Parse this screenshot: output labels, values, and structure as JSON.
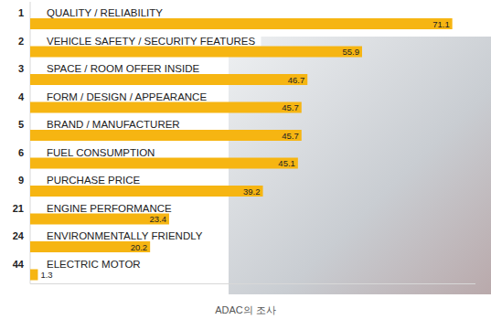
{
  "chart_data": {
    "type": "bar",
    "orientation": "horizontal",
    "ranks": [
      1,
      2,
      3,
      4,
      5,
      6,
      9,
      21,
      24,
      44
    ],
    "categories": [
      "QUALITY / RELIABILITY",
      "VEHICLE SAFETY / SECURITY FEATURES",
      "SPACE / ROOM OFFER INSIDE",
      "FORM / DESIGN / APPEARANCE",
      "BRAND / MANUFACTURER",
      "FUEL CONSUMPTION",
      "PURCHASE PRICE",
      "ENGINE PERFORMANCE",
      "ENVIRONMENTALLY FRIENDLY",
      "ELECTRIC MOTOR"
    ],
    "values": [
      71.1,
      55.9,
      46.7,
      45.7,
      45.7,
      45.1,
      39.2,
      23.4,
      20.2,
      1.3
    ],
    "color": "#f6b512",
    "xlim": [
      0,
      75
    ],
    "data_labels": true,
    "tick_labels": false,
    "caption": "ADAC의 조사"
  }
}
